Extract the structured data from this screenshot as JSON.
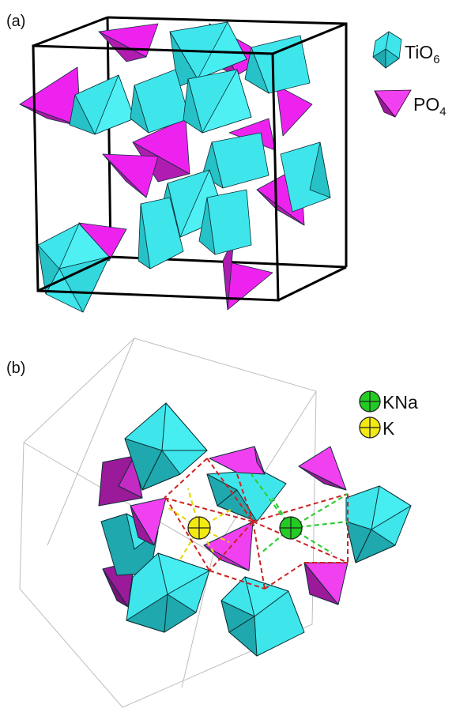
{
  "panel_a": {
    "label": "(a)",
    "legend": [
      {
        "formula": "TiO",
        "subscript": "6",
        "color": "#33e0e8",
        "shape": "octahedron"
      },
      {
        "formula": "PO",
        "subscript": "4",
        "color": "#ee22ee",
        "shape": "tetrahedron"
      }
    ]
  },
  "panel_b": {
    "label": "(b)",
    "legend": [
      {
        "name": "KNa",
        "color": "#22cc22"
      },
      {
        "name": "K",
        "color": "#f2ea12"
      }
    ]
  },
  "colors": {
    "octa_light": "#3ee6ec",
    "octa_dark": "#1fa8ad",
    "tetra_light": "#f040f0",
    "tetra_dark": "#9a1a9a",
    "cell_edge_a": "#000000",
    "cell_edge_b": "#bdbdbd",
    "bond_red": "#cc2222",
    "bond_green": "#33cc33",
    "bond_yellow": "#e6d810"
  }
}
